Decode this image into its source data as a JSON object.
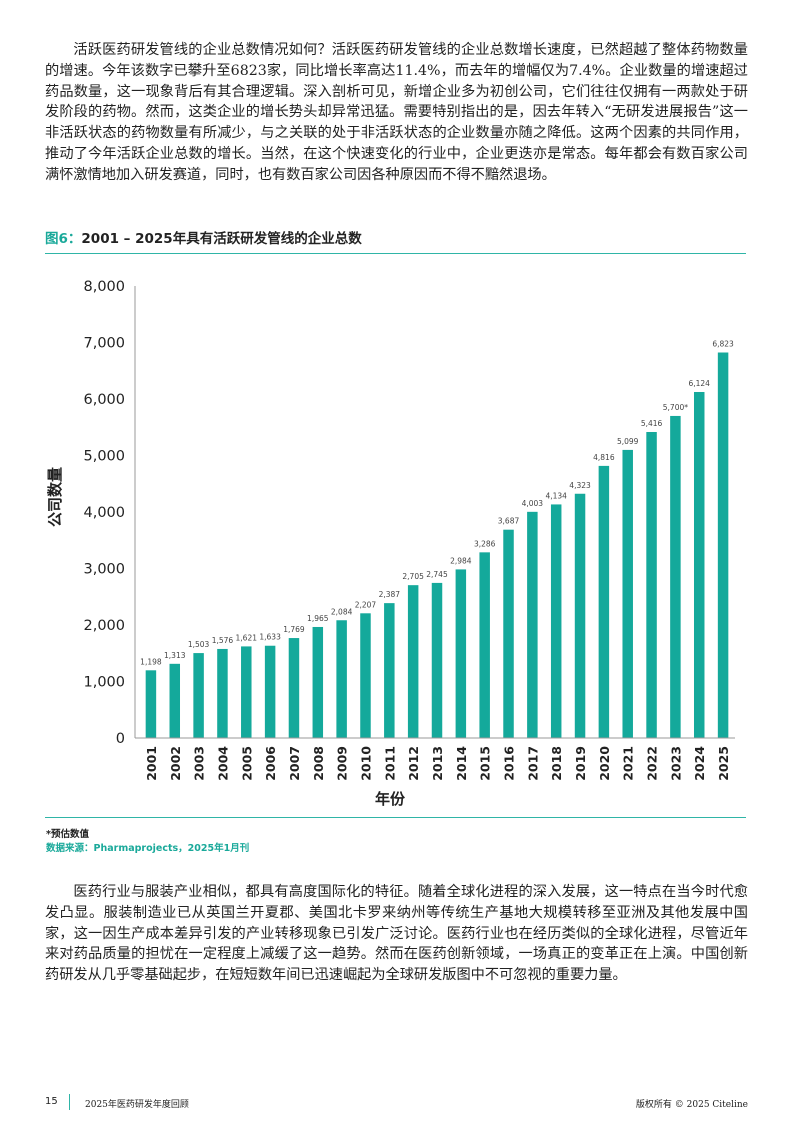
{
  "intro_paragraph": "活跃医药研发管线的企业总数情况如何？活跃医药研发管线的企业总数增长速度，已然超越了整体药物数量的增速。今年该数字已攀升至6823家，同比增长率高达11.4%，而去年的增幅仅为7.4%。企业数量的增速超过药品数量，这一现象背后有其合理逻辑。深入剖析可见，新增企业多为初创公司，它们往往仅拥有一两款处于研发阶段的药物。然而，这类企业的增长势头却异常迅猛。需要特别指出的是，因去年转入“无研发进展报告”这一非活跃状态的药物数量有所减少，与之关联的处于非活跃状态的企业数量亦随之降低。这两个因素的共同作用，推动了今年活跃企业总数的增长。当然，在这个快速变化的行业中，企业更迭亦是常态。每年都会有数百家公司满怀激情地加入研发赛道，同时，也有数百家公司因各种原因而不得不黯然退场。",
  "figure": {
    "label": "图6：",
    "title": "2001 – 2025年具有活跃研发管线的企业总数",
    "note": "*预估数值",
    "source": "数据来源：Pharmaprojects，2025年1月刊"
  },
  "chart_data": {
    "type": "bar",
    "title": "",
    "xlabel": "年份",
    "ylabel": "公司数量",
    "ylim": [
      0,
      8000
    ],
    "yticks": [
      0,
      1000,
      2000,
      3000,
      4000,
      5000,
      6000,
      7000,
      8000
    ],
    "ytick_labels": [
      "0",
      "1,000",
      "2,000",
      "3,000",
      "4,000",
      "5,000",
      "6,000",
      "7,000",
      "8,000"
    ],
    "grid": false,
    "bar_color": "#14a99b",
    "categories": [
      "2001",
      "2002",
      "2003",
      "2004",
      "2005",
      "2006",
      "2007",
      "2008",
      "2009",
      "2010",
      "2011",
      "2012",
      "2013",
      "2014",
      "2015",
      "2016",
      "2017",
      "2018",
      "2019",
      "2020",
      "2021",
      "2022",
      "2023",
      "2024",
      "2025"
    ],
    "values": [
      1198,
      1313,
      1503,
      1576,
      1621,
      1633,
      1769,
      1965,
      2084,
      2207,
      2387,
      2705,
      2745,
      2984,
      3286,
      3687,
      4003,
      4134,
      4323,
      4816,
      5099,
      5416,
      5700,
      6124,
      6823
    ],
    "value_labels": [
      "1,198",
      "1,313",
      "1,503",
      "1,576",
      "1,621",
      "1,633",
      "1,769",
      "1,965",
      "2,084",
      "2,207",
      "2,387",
      "2,705",
      "2,745",
      "2,984",
      "3,286",
      "3,687",
      "4,003",
      "4,134",
      "4,323",
      "4,816",
      "5,099",
      "5,416",
      "5,700*",
      "6,124",
      "6,823"
    ]
  },
  "outro_paragraph": "医药行业与服装产业相似，都具有高度国际化的特征。随着全球化进程的深入发展，这一特点在当今时代愈发凸显。服装制造业已从英国兰开夏郡、美国北卡罗来纳州等传统生产基地大规模转移至亚洲及其他发展中国家，这一因生产成本差异引发的产业转移现象已引发广泛讨论。医药行业也在经历类似的全球化进程，尽管近年来对药品质量的担忧在一定程度上减缓了这一趋势。然而在医药创新领域，一场真正的变革正在上演。中国创新药研发从几乎零基础起步，在短短数年间已迅速崛起为全球研发版图中不可忽视的重要力量。",
  "footer": {
    "page_number": "15",
    "doc_title": "2025年医药研发年度回顾",
    "copyright": "版权所有 © 2025 Citeline"
  }
}
